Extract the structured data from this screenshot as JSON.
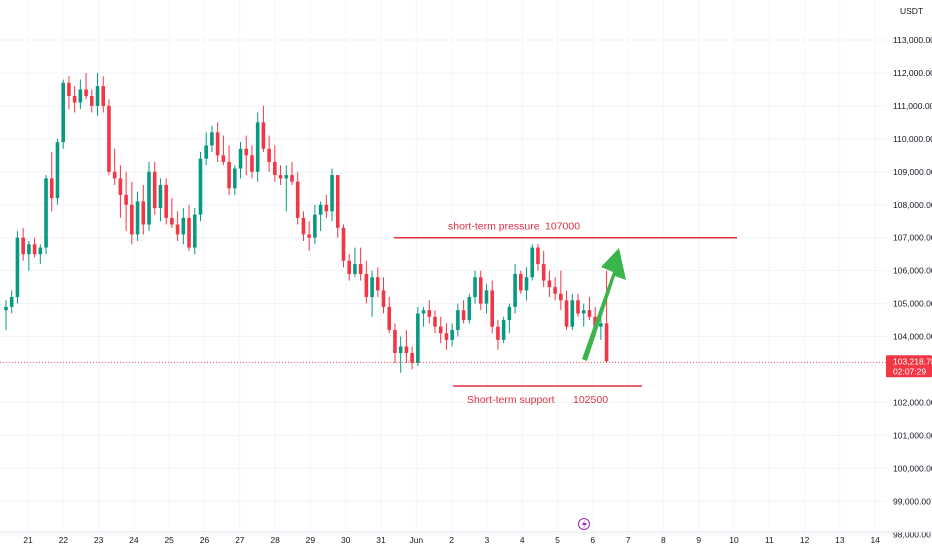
{
  "chart_data": {
    "type": "candlestick",
    "currency_label": "USDT",
    "price_tag": {
      "value": "103,218.78",
      "countdown": "02:07:29"
    },
    "y_ticks": [
      "113,000.00",
      "112,000.00",
      "111,000.00",
      "110,000.00",
      "109,000.00",
      "108,000.00",
      "107,000.00",
      "106,000.00",
      "105,000.00",
      "104,000.00",
      "102,000.00",
      "101,000.00",
      "100,000.00",
      "99,000.00",
      "98,000.00"
    ],
    "x_ticks": [
      "21",
      "22",
      "23",
      "24",
      "25",
      "26",
      "27",
      "28",
      "29",
      "30",
      "31",
      "Jun",
      "2",
      "3",
      "4",
      "5",
      "6",
      "7",
      "8",
      "9",
      "10",
      "11",
      "12",
      "13",
      "14"
    ],
    "current_price": 103218.78,
    "levels": [
      {
        "label": "short-term pressure",
        "value_label": "107000",
        "price": 107000
      },
      {
        "label": "Short-term support",
        "value_label": "102500",
        "price": 102500
      }
    ],
    "series": [
      [
        104800,
        105100,
        104200,
        104900
      ],
      [
        104900,
        105400,
        104700,
        105200
      ],
      [
        105200,
        107200,
        105000,
        107000
      ],
      [
        107000,
        107300,
        106300,
        106500
      ],
      [
        106500,
        106900,
        106000,
        106800
      ],
      [
        106800,
        107000,
        106400,
        106500
      ],
      [
        106500,
        106800,
        106200,
        106700
      ],
      [
        106700,
        108900,
        106500,
        108800
      ],
      [
        108800,
        109600,
        107800,
        108200
      ],
      [
        108200,
        110000,
        108000,
        109900
      ],
      [
        109900,
        111800,
        109700,
        111700
      ],
      [
        111700,
        111900,
        110900,
        111300
      ],
      [
        111300,
        111600,
        110800,
        111100
      ],
      [
        111100,
        111800,
        110900,
        111500
      ],
      [
        111500,
        112000,
        111200,
        111300
      ],
      [
        111300,
        111500,
        110800,
        111000
      ],
      [
        111000,
        112000,
        110700,
        111600
      ],
      [
        111600,
        111900,
        110800,
        111000
      ],
      [
        111000,
        111200,
        108900,
        109000
      ],
      [
        109000,
        109700,
        108600,
        108800
      ],
      [
        108800,
        109200,
        107600,
        108300
      ],
      [
        108300,
        109000,
        107200,
        108000
      ],
      [
        108000,
        108700,
        106800,
        107100
      ],
      [
        107100,
        108400,
        106900,
        108100
      ],
      [
        108100,
        108600,
        107100,
        107400
      ],
      [
        107400,
        109300,
        107200,
        109000
      ],
      [
        109000,
        109300,
        107700,
        107900
      ],
      [
        107900,
        108800,
        107500,
        108600
      ],
      [
        108600,
        108800,
        107400,
        107600
      ],
      [
        107600,
        108200,
        107300,
        107400
      ],
      [
        107400,
        107800,
        106900,
        107100
      ],
      [
        107100,
        107900,
        106800,
        107600
      ],
      [
        107600,
        108000,
        106600,
        106700
      ],
      [
        106700,
        107900,
        106500,
        107700
      ],
      [
        107700,
        109600,
        107500,
        109400
      ],
      [
        109400,
        110200,
        109200,
        109800
      ],
      [
        109800,
        110400,
        109600,
        110200
      ],
      [
        110200,
        110500,
        109300,
        109500
      ],
      [
        109500,
        110100,
        109200,
        109300
      ],
      [
        109300,
        109800,
        108300,
        108500
      ],
      [
        108500,
        109200,
        108300,
        109100
      ],
      [
        109100,
        109900,
        108800,
        109700
      ],
      [
        109700,
        110100,
        108900,
        109500
      ],
      [
        109500,
        109800,
        108800,
        109000
      ],
      [
        109000,
        110800,
        108700,
        110500
      ],
      [
        110500,
        111000,
        109600,
        109700
      ],
      [
        109700,
        110100,
        109000,
        109300
      ],
      [
        109300,
        109800,
        108700,
        108900
      ],
      [
        108900,
        109200,
        108600,
        108800
      ],
      [
        108800,
        109200,
        107800,
        108900
      ],
      [
        108900,
        109300,
        108600,
        108700
      ],
      [
        108700,
        109000,
        107400,
        107600
      ],
      [
        107600,
        107800,
        106900,
        107100
      ],
      [
        107100,
        107500,
        106600,
        107000
      ],
      [
        107000,
        108000,
        106800,
        107700
      ],
      [
        107700,
        108100,
        107200,
        108000
      ],
      [
        108000,
        108300,
        107600,
        107800
      ],
      [
        107800,
        109100,
        107500,
        108900
      ],
      [
        108900,
        108900,
        107000,
        107300
      ],
      [
        107300,
        107400,
        106100,
        106300
      ],
      [
        106300,
        106500,
        105700,
        105900
      ],
      [
        105900,
        106700,
        105800,
        106200
      ],
      [
        106200,
        106700,
        105700,
        105900
      ],
      [
        105900,
        106300,
        105000,
        105200
      ],
      [
        105200,
        106000,
        104600,
        105800
      ],
      [
        105800,
        106100,
        105200,
        105400
      ],
      [
        105400,
        105800,
        104700,
        104900
      ],
      [
        104900,
        105200,
        104100,
        104200
      ],
      [
        104200,
        104400,
        103200,
        103500
      ],
      [
        103500,
        104000,
        102900,
        103700
      ],
      [
        103700,
        104200,
        103200,
        103500
      ],
      [
        103500,
        103700,
        103000,
        103200
      ],
      [
        103200,
        104900,
        103100,
        104700
      ],
      [
        104700,
        104900,
        104300,
        104800
      ],
      [
        104800,
        105100,
        104400,
        104600
      ],
      [
        104600,
        104800,
        104100,
        104300
      ],
      [
        104300,
        104600,
        103800,
        104100
      ],
      [
        104100,
        104400,
        103600,
        103900
      ],
      [
        103900,
        104400,
        103700,
        104200
      ],
      [
        104200,
        105000,
        104000,
        104800
      ],
      [
        104800,
        105100,
        104400,
        104500
      ],
      [
        104500,
        105300,
        104400,
        105200
      ],
      [
        105200,
        106000,
        105000,
        105800
      ],
      [
        105800,
        106000,
        104800,
        105000
      ],
      [
        105000,
        105600,
        104700,
        105400
      ],
      [
        105400,
        105700,
        104100,
        104300
      ],
      [
        104300,
        104500,
        103600,
        103900
      ],
      [
        103900,
        104600,
        103800,
        104500
      ],
      [
        104500,
        105000,
        104100,
        104900
      ],
      [
        104900,
        106200,
        104700,
        105900
      ],
      [
        105900,
        106000,
        105300,
        105400
      ],
      [
        105400,
        106100,
        105100,
        105800
      ],
      [
        105800,
        106800,
        105700,
        106700
      ],
      [
        106700,
        106800,
        106000,
        106200
      ],
      [
        106200,
        106600,
        105500,
        105700
      ],
      [
        105700,
        106000,
        105200,
        105500
      ],
      [
        105500,
        105800,
        105100,
        105300
      ],
      [
        105300,
        106000,
        104800,
        105100
      ],
      [
        105100,
        105400,
        104200,
        104300
      ],
      [
        104300,
        105300,
        104200,
        105100
      ],
      [
        105100,
        105300,
        104600,
        104700
      ],
      [
        104700,
        105000,
        104300,
        104800
      ],
      [
        104800,
        105200,
        104500,
        104600
      ],
      [
        104600,
        104900,
        104000,
        104300
      ],
      [
        104300,
        104700,
        103900,
        104400
      ],
      [
        104400,
        106000,
        103200,
        103250
      ]
    ]
  }
}
